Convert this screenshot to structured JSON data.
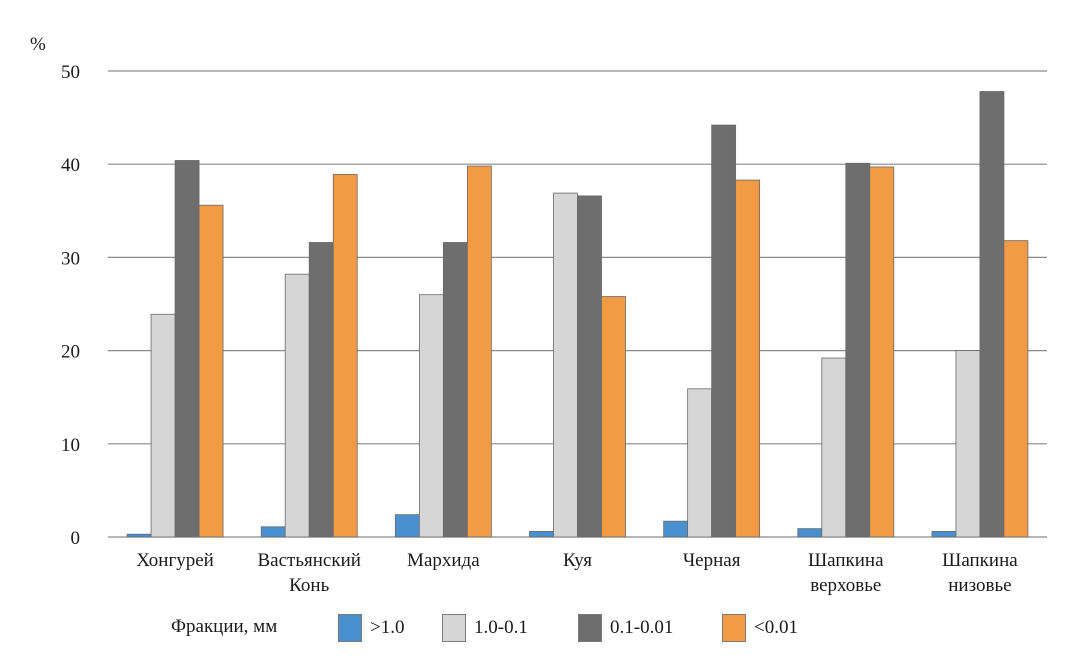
{
  "chart_data": {
    "type": "bar",
    "ylabel": "%",
    "ylim": [
      0,
      50
    ],
    "yticks": [
      0,
      10,
      20,
      30,
      40,
      50
    ],
    "grid": true,
    "legend_position": "bottom",
    "legend_title": "Фракции, мм",
    "categories": [
      [
        "Хонгурей"
      ],
      [
        "Вастьянский",
        "Конь"
      ],
      [
        "Мархида"
      ],
      [
        "Куя"
      ],
      [
        "Черная"
      ],
      [
        "Шапкина",
        "верховье"
      ],
      [
        "Шапкина",
        "низовье"
      ]
    ],
    "series": [
      {
        "name": ">1.0",
        "color": "#4a90d0",
        "values": [
          0.3,
          1.1,
          2.4,
          0.6,
          1.7,
          0.9,
          0.6
        ]
      },
      {
        "name": "1.0-0.1",
        "color": "#d6d6d6",
        "values": [
          23.9,
          28.2,
          26.0,
          36.9,
          15.9,
          19.2,
          20.0
        ]
      },
      {
        "name": "0.1-0.01",
        "color": "#6e6e6e",
        "values": [
          40.4,
          31.6,
          31.6,
          36.6,
          44.2,
          40.1,
          47.8
        ]
      },
      {
        "name": "<0.01",
        "color": "#f39a45",
        "values": [
          35.6,
          38.9,
          39.8,
          25.8,
          38.3,
          39.7,
          31.8
        ]
      }
    ]
  }
}
